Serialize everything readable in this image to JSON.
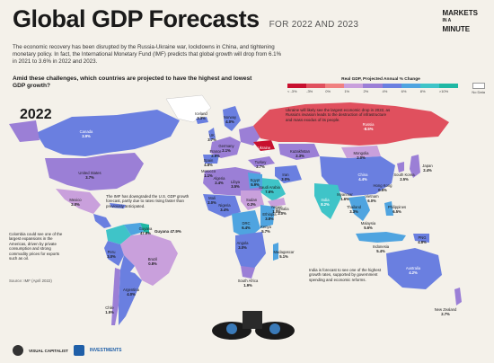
{
  "header": {
    "title": "Global GDP Forecasts",
    "subtitle": "FOR 2022 AND 2023",
    "brand_line1": "MARKETS",
    "brand_line2": "IN A",
    "brand_line3": "MINUTE"
  },
  "intro": "The economic recovery has been disrupted by the Russia-Ukraine war, lockdowns in China, and tightening monetary policy. In fact, the International Monetary Fund (IMF) predicts that global growth will drop from 6.1% in 2021 to 3.6% in 2022 and 2023.",
  "question": "Amid these challenges, which countries are projected to have the highest and lowest GDP growth?",
  "legend": {
    "title": "Real GDP, Projected Annual % Change",
    "ticks": [
      "< -3%",
      "-3%",
      "0%",
      "1%",
      "2%",
      "4%",
      "6%",
      "8%",
      ">10%"
    ],
    "colors": [
      "#c8102e",
      "#e0505e",
      "#f08080",
      "#c9a0dc",
      "#9b7fd6",
      "#6a7fe0",
      "#4fa4e0",
      "#3fc4c8",
      "#1fb8a4"
    ],
    "no_data_label": "No Data"
  },
  "year_label": "2022",
  "map": {
    "country_labels": [
      {
        "name": "Canada",
        "value": "3.9%"
      },
      {
        "name": "United States",
        "value": "3.7%"
      },
      {
        "name": "Mexico",
        "value": "2.0%"
      },
      {
        "name": "Brazil",
        "value": "0.8%"
      },
      {
        "name": "Peru",
        "value": "3.0%"
      },
      {
        "name": "Chile",
        "value": "1.5%"
      },
      {
        "name": "Argentina",
        "value": "4.0%"
      },
      {
        "name": "Russia",
        "value": "-8.5%"
      },
      {
        "name": "China",
        "value": "4.4%"
      },
      {
        "name": "India",
        "value": "8.2%"
      },
      {
        "name": "Japan",
        "value": "2.4%"
      },
      {
        "name": "Australia",
        "value": "4.2%"
      },
      {
        "name": "New Zealand",
        "value": "2.7%"
      },
      {
        "name": "Indonesia",
        "value": "5.4%"
      },
      {
        "name": "Philippines",
        "value": "6.5%"
      },
      {
        "name": "Thailand",
        "value": "3.3%"
      },
      {
        "name": "Malaysia",
        "value": "5.6%"
      },
      {
        "name": "Vietnam",
        "value": "6.0%"
      },
      {
        "name": "Myanmar",
        "value": "1.6%"
      },
      {
        "name": "Iran",
        "value": "3.0%"
      },
      {
        "name": "Saudi Arabia",
        "value": "7.6%"
      },
      {
        "name": "Egypt",
        "value": "5.9%"
      },
      {
        "name": "Nigeria",
        "value": "3.4%"
      },
      {
        "name": "Ethiopia",
        "value": "3.8%"
      },
      {
        "name": "Kenya",
        "value": "5.7%"
      },
      {
        "name": "Angola",
        "value": "3.0%"
      },
      {
        "name": "South Africa",
        "value": "1.9%"
      },
      {
        "name": "Madagascar",
        "value": "5.1%"
      },
      {
        "name": "Somalia",
        "value": "3.0%"
      },
      {
        "name": "Yemen",
        "value": "1.0%"
      },
      {
        "name": "Ukraine",
        "value": "-35.0%"
      },
      {
        "name": "Kazakhstan",
        "value": "2.3%"
      },
      {
        "name": "Mongolia",
        "value": "2.0%"
      },
      {
        "name": "Guyana",
        "value": "47.9%"
      },
      {
        "name": "Libya",
        "value": "3.5%"
      },
      {
        "name": "Algeria",
        "value": "2.4%"
      },
      {
        "name": "Sudan",
        "value": "0.3%"
      },
      {
        "name": "Hong Kong",
        "value": "0.5%"
      },
      {
        "name": "South Korea",
        "value": "2.5%"
      },
      {
        "name": "PNG",
        "value": "4.8%"
      },
      {
        "name": "Iceland",
        "value": "3.3%"
      },
      {
        "name": "Norway",
        "value": "4.0%"
      },
      {
        "name": "UK",
        "value": "3.7%"
      },
      {
        "name": "Germany",
        "value": "2.1%"
      },
      {
        "name": "France",
        "value": "2.9%"
      },
      {
        "name": "Spain",
        "value": "4.8%"
      },
      {
        "name": "Turkey",
        "value": "2.7%"
      },
      {
        "name": "Morocco",
        "value": "1.1%"
      },
      {
        "name": "Mali",
        "value": "2.0%"
      },
      {
        "name": "DRC",
        "value": "6.4%"
      }
    ]
  },
  "callouts": {
    "ukraine": "Ukraine will likely see the largest economic drop in 2022, as Russia's invasion leads to the destruction of infrastructure and mass exodus of its people.",
    "us": "The IMF has downgraded the U.S. GDP growth forecast, partly due to rates rising faster than previously anticipated.",
    "guyana_label": "Guyana 47.9%",
    "colombia": "Colombia could see one of the largest expansions in the Americas, driven by private consumption and strong commodity prices for exports such as oil.",
    "source": "Source: IMF (April 2022)",
    "india": "India is forecast to see one of the highest growth rates, supported by government spending and economic reforms."
  },
  "footer": {
    "vc": "VISUAL CAPITALIST",
    "partner": "INVESTMENTS"
  }
}
